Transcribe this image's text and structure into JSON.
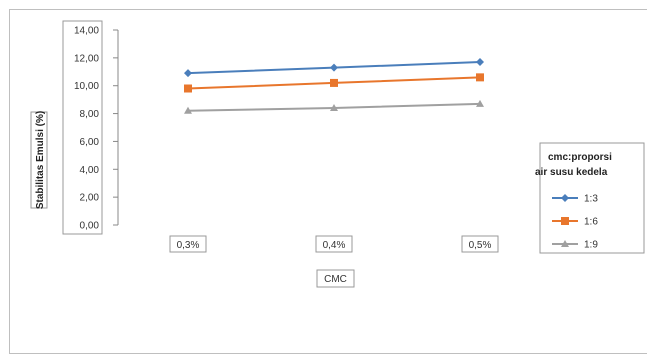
{
  "chart_data": {
    "type": "line",
    "categories": [
      "0,3%",
      "0,4%",
      "0,5%"
    ],
    "series": [
      {
        "name": "1:3",
        "values": [
          10.9,
          11.3,
          11.7
        ],
        "color": "#4a7ebb",
        "marker": "diamond"
      },
      {
        "name": "1:6",
        "values": [
          9.8,
          10.2,
          10.6
        ],
        "color": "#e8762c",
        "marker": "square"
      },
      {
        "name": "1:9",
        "values": [
          8.2,
          8.4,
          8.7
        ],
        "color": "#a0a0a0",
        "marker": "triangle"
      }
    ],
    "xlabel": "CMC",
    "ylabel": "Stabilitas Emulsi (%)",
    "ylim": [
      0,
      14
    ],
    "yticks": [
      "0,00",
      "2,00",
      "4,00",
      "6,00",
      "8,00",
      "10,00",
      "12,00",
      "14,00"
    ],
    "legend_title_lines": [
      "cmc:proporsi",
      "air susu kedela"
    ],
    "legend_position": "right",
    "grid": false
  }
}
